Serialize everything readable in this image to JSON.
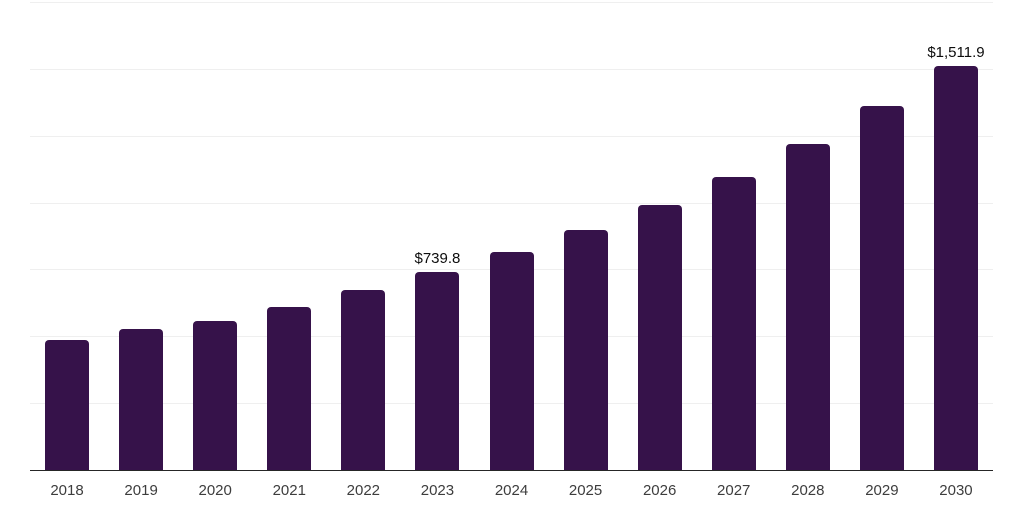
{
  "chart": {
    "background_color": "#ffffff",
    "bar_color": "#36124a",
    "axis_line_color": "#262626",
    "gridline_color": "#efefef",
    "tick_label_color": "#3d3d3d",
    "data_label_color": "#0d0d0d"
  },
  "chart_data": {
    "type": "bar",
    "title": "",
    "xlabel": "",
    "ylabel": "",
    "categories": [
      "2018",
      "2019",
      "2020",
      "2021",
      "2022",
      "2023",
      "2024",
      "2025",
      "2026",
      "2027",
      "2028",
      "2029",
      "2030"
    ],
    "values": [
      486,
      529,
      556,
      610,
      672,
      739.8,
      817,
      899,
      990,
      1097,
      1220,
      1360,
      1511.9
    ],
    "labeled_values": [
      {
        "category": "2023",
        "text": "$739.8"
      },
      {
        "category": "2030",
        "text": "$1,511.9"
      }
    ],
    "ylim": [
      0,
      1750
    ],
    "gridline_interval": 250,
    "grid": "horizontal",
    "legend": "none",
    "y_axis_tick_labels_visible": false
  }
}
